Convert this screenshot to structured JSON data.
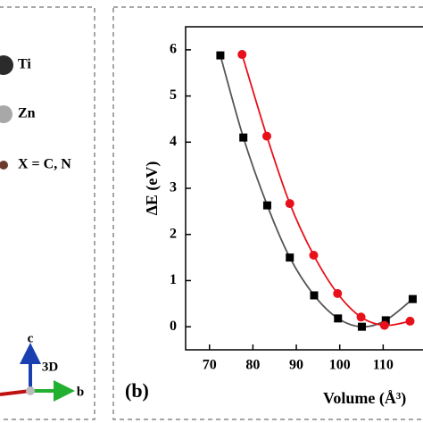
{
  "panel_a": {
    "atoms": [
      {
        "label": "Ti",
        "color": "#2b2b2b"
      },
      {
        "label": "Zn",
        "color": "#a8a8a8"
      },
      {
        "label": "X = C, N",
        "color": "#6b3a2a"
      }
    ],
    "axes": {
      "c": "c",
      "b": "b",
      "view": "3D"
    }
  },
  "chart_data": {
    "type": "line",
    "panel_label": "(b)",
    "y_label": "ΔE (eV)",
    "x_label": "Volume (Å³)",
    "xlim": [
      64.5,
      120
    ],
    "xticks": [
      70,
      80,
      90,
      100,
      110
    ],
    "ylim": [
      -0.5,
      6.5
    ],
    "yticks": [
      0,
      1,
      2,
      3,
      4,
      5,
      6
    ],
    "series": [
      {
        "marker": "square",
        "color": "#000000",
        "line_color": "#555555",
        "x": [
          72.5,
          77.8,
          83.3,
          88.5,
          94.1,
          99.6,
          105.1,
          110.6,
          116.8
        ],
        "values": [
          5.88,
          4.1,
          2.63,
          1.5,
          0.68,
          0.18,
          0,
          0.14,
          0.6
        ]
      },
      {
        "marker": "circle",
        "color": "#e8101a",
        "line_color": "#e8101a",
        "x": [
          77.5,
          83.2,
          88.5,
          94,
          99.5,
          104.9,
          110.3,
          116.2
        ],
        "values": [
          5.9,
          4.13,
          2.67,
          1.55,
          0.72,
          0.21,
          0.03,
          0.12
        ]
      }
    ]
  }
}
